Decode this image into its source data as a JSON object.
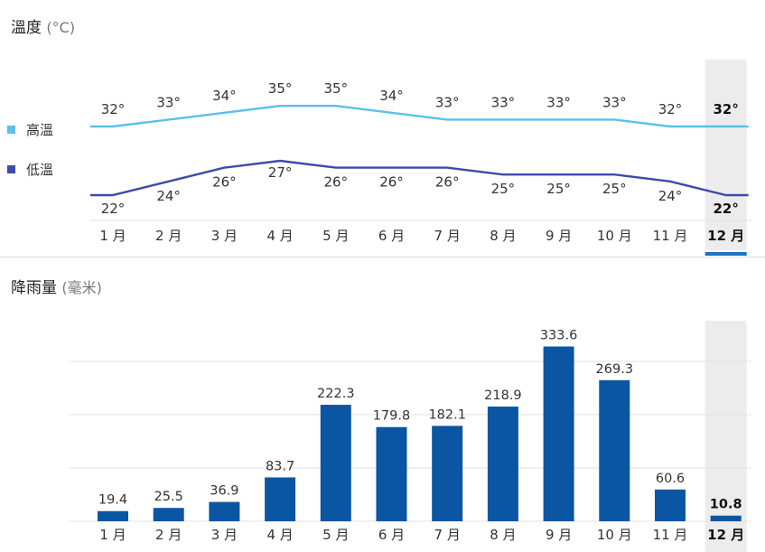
{
  "temp_section": {
    "title": "溫度",
    "unit": "(°C)"
  },
  "rain_section": {
    "title": "降雨量",
    "unit": "(毫米)"
  },
  "legend": {
    "high": "高溫",
    "low": "低溫"
  },
  "colors": {
    "high": "#5bc0eb",
    "low": "#3f4aa8",
    "bar": "#0a56a3",
    "highlight_band": "#ececec",
    "highlight_tab": "#1a73c8",
    "grid": "#e2e2e2"
  },
  "selected_month_index": 11,
  "chart_data": [
    {
      "type": "line",
      "title": "溫度 (°C)",
      "categories": [
        "1 月",
        "2 月",
        "3 月",
        "4 月",
        "5 月",
        "6 月",
        "7 月",
        "8 月",
        "9 月",
        "10 月",
        "11 月",
        "12 月"
      ],
      "series": [
        {
          "name": "高溫",
          "values": [
            32,
            33,
            34,
            35,
            35,
            34,
            33,
            33,
            33,
            33,
            32,
            32
          ],
          "labels": [
            "32°",
            "33°",
            "34°",
            "35°",
            "35°",
            "34°",
            "33°",
            "33°",
            "33°",
            "33°",
            "32°",
            "32°"
          ]
        },
        {
          "name": "低溫",
          "values": [
            22,
            24,
            26,
            27,
            26,
            26,
            26,
            25,
            25,
            25,
            24,
            22
          ],
          "labels": [
            "22°",
            "24°",
            "26°",
            "27°",
            "26°",
            "26°",
            "26°",
            "25°",
            "25°",
            "25°",
            "24°",
            "22°"
          ]
        }
      ]
    },
    {
      "type": "bar",
      "title": "降雨量 (毫米)",
      "categories": [
        "1 月",
        "2 月",
        "3 月",
        "4 月",
        "5 月",
        "6 月",
        "7 月",
        "8 月",
        "9 月",
        "10 月",
        "11 月",
        "12 月"
      ],
      "values": [
        19.4,
        25.5,
        36.9,
        83.7,
        222.3,
        179.8,
        182.1,
        218.9,
        333.6,
        269.3,
        60.6,
        10.8
      ],
      "labels": [
        "19.4",
        "25.5",
        "36.9",
        "83.7",
        "222.3",
        "179.8",
        "182.1",
        "218.9",
        "333.6",
        "269.3",
        "60.6",
        "10.8"
      ]
    }
  ]
}
